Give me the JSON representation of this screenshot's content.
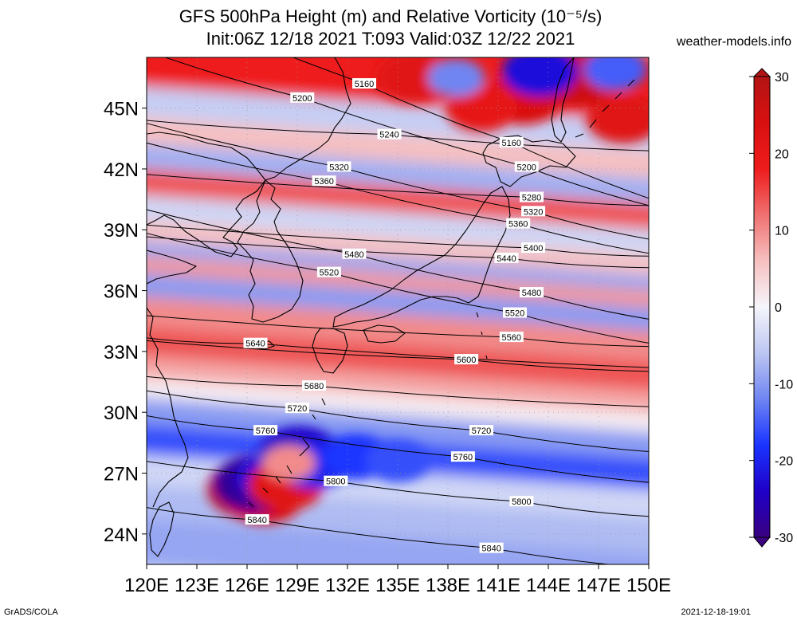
{
  "header": {
    "title_line1": "GFS 500hPa Height (m) and Relative Vorticity (10⁻⁵/s)",
    "title_line2": "Init:06Z 12/18 2021 T:093 Valid:03Z 12/22 2021",
    "site": "weather-models.info"
  },
  "map": {
    "lon_ticks": [
      "120E",
      "123E",
      "126E",
      "129E",
      "132E",
      "135E",
      "138E",
      "141E",
      "144E",
      "147E",
      "150E"
    ],
    "lat_ticks": [
      "45N",
      "42N",
      "39N",
      "36N",
      "33N",
      "30N",
      "27N",
      "24N"
    ],
    "lon_range": [
      120,
      150
    ],
    "lat_range": [
      22.5,
      47.5
    ],
    "contour_interval_m": 40,
    "contour_labels": [
      {
        "value": "5160",
        "lon": 141.8,
        "lat": 43.3
      },
      {
        "value": "5160",
        "lon": 133.0,
        "lat": 46.2
      },
      {
        "value": "5200",
        "lon": 142.7,
        "lat": 42.1
      },
      {
        "value": "5200",
        "lon": 129.3,
        "lat": 45.5
      },
      {
        "value": "5240",
        "lon": 134.5,
        "lat": 43.7
      },
      {
        "value": "5280",
        "lon": 143.0,
        "lat": 40.6
      },
      {
        "value": "5320",
        "lon": 131.5,
        "lat": 42.1
      },
      {
        "value": "5320",
        "lon": 143.1,
        "lat": 39.9
      },
      {
        "value": "5360",
        "lon": 130.6,
        "lat": 41.4
      },
      {
        "value": "5360",
        "lon": 142.2,
        "lat": 39.3
      },
      {
        "value": "5400",
        "lon": 143.1,
        "lat": 38.1
      },
      {
        "value": "5440",
        "lon": 141.5,
        "lat": 37.6
      },
      {
        "value": "5480",
        "lon": 132.4,
        "lat": 37.8
      },
      {
        "value": "5480",
        "lon": 143.0,
        "lat": 35.9
      },
      {
        "value": "5520",
        "lon": 130.9,
        "lat": 36.9
      },
      {
        "value": "5520",
        "lon": 142.0,
        "lat": 34.9
      },
      {
        "value": "5560",
        "lon": 141.8,
        "lat": 33.7
      },
      {
        "value": "5600",
        "lon": 139.1,
        "lat": 32.6
      },
      {
        "value": "5640",
        "lon": 126.5,
        "lat": 33.4
      },
      {
        "value": "5680",
        "lon": 130.0,
        "lat": 31.3
      },
      {
        "value": "5720",
        "lon": 129.0,
        "lat": 30.2
      },
      {
        "value": "5720",
        "lon": 140.0,
        "lat": 29.1
      },
      {
        "value": "5760",
        "lon": 127.1,
        "lat": 29.1
      },
      {
        "value": "5760",
        "lon": 138.9,
        "lat": 27.8
      },
      {
        "value": "5800",
        "lon": 131.3,
        "lat": 26.6
      },
      {
        "value": "5800",
        "lon": 142.4,
        "lat": 25.6
      },
      {
        "value": "5840",
        "lon": 126.6,
        "lat": 24.7
      },
      {
        "value": "5840",
        "lon": 140.6,
        "lat": 23.3
      }
    ],
    "bands": [
      {
        "lat": 46.0,
        "vort": 18
      },
      {
        "lat": 44.4,
        "vort": -5
      },
      {
        "lat": 43.0,
        "vort": 6
      },
      {
        "lat": 41.8,
        "vort": -8
      },
      {
        "lat": 40.5,
        "vort": 14
      },
      {
        "lat": 39.2,
        "vort": -4
      },
      {
        "lat": 38.0,
        "vort": 6
      },
      {
        "lat": 37.2,
        "vort": -9
      },
      {
        "lat": 36.5,
        "vort": 9
      },
      {
        "lat": 35.5,
        "vort": -10
      },
      {
        "lat": 34.2,
        "vort": 10
      },
      {
        "lat": 32.5,
        "vort": 14
      },
      {
        "lat": 31.3,
        "vort": 8
      },
      {
        "lat": 30.4,
        "vort": 1
      },
      {
        "lat": 29.3,
        "vort": -10
      },
      {
        "lat": 27.8,
        "vort": -16
      },
      {
        "lat": 26.3,
        "vort": -4
      },
      {
        "lat": 24.8,
        "vort": -7
      },
      {
        "lat": 23.0,
        "vort": -9
      }
    ],
    "vorticity_blobs": [
      {
        "lon": 142.5,
        "lat": 45.5,
        "vort": 24
      },
      {
        "lon": 148.5,
        "lat": 44.5,
        "vort": 22
      },
      {
        "lon": 145.5,
        "lat": 46.5,
        "vort": 26
      },
      {
        "lon": 136.0,
        "lat": 46.5,
        "vort": 22
      },
      {
        "lon": 140.0,
        "lat": 45.0,
        "vort": 20
      },
      {
        "lon": 143.5,
        "lat": 46.8,
        "vort": -22
      },
      {
        "lon": 138.5,
        "lat": 46.5,
        "vort": -12
      },
      {
        "lon": 148.0,
        "lat": 46.9,
        "vort": -15
      },
      {
        "lon": 126.2,
        "lat": 26.2,
        "vort": 28
      },
      {
        "lon": 127.0,
        "lat": 25.8,
        "vort": 24
      },
      {
        "lon": 126.6,
        "lat": 26.5,
        "vort": -28
      },
      {
        "lon": 127.6,
        "lat": 26.8,
        "vort": -22
      },
      {
        "lon": 128.3,
        "lat": 26.4,
        "vort": 22
      },
      {
        "lon": 129.1,
        "lat": 28.0,
        "vort": -24
      },
      {
        "lon": 130.0,
        "lat": 27.4,
        "vort": -20
      },
      {
        "lon": 132.5,
        "lat": 27.8,
        "vort": -18
      },
      {
        "lon": 135.0,
        "lat": 27.6,
        "vort": -16
      },
      {
        "lon": 128.5,
        "lat": 27.5,
        "vort": 10
      }
    ]
  },
  "colorbar": {
    "ticks": [
      "30",
      "20",
      "10",
      "0",
      "-10",
      "-20",
      "-30"
    ],
    "range": [
      -30,
      30
    ],
    "colors": [
      "#3a0080",
      "#1f00c8",
      "#1a34ff",
      "#6f85f2",
      "#bcc6f2",
      "#f5f5fb",
      "#f6c0c0",
      "#f07070",
      "#ee1c1c",
      "#d91010",
      "#b31414"
    ]
  },
  "footer": {
    "left": "GrADS/COLA",
    "right": "2021-12-18-19:01"
  }
}
